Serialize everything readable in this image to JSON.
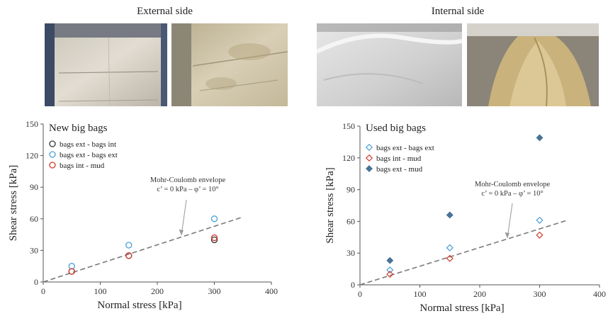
{
  "captions": {
    "left": "External side",
    "right": "Internal side"
  },
  "colors": {
    "black": "#333333",
    "blue": "#4a9fd8",
    "red": "#d23a2a",
    "steel": "#4a7598",
    "envelope": "#7a7a7a"
  },
  "chart_data": [
    {
      "type": "scatter",
      "title": "New big bags",
      "xlabel": "Normal stress [kPa]",
      "ylabel": "Shear stress [kPa]",
      "xlim": [
        0,
        400
      ],
      "ylim": [
        0,
        150
      ],
      "xticks": [
        "0",
        "100",
        "200",
        "300",
        "400"
      ],
      "yticks": [
        "0",
        "30",
        "60",
        "90",
        "120",
        "150"
      ],
      "grid": false,
      "legend_position": "top-left",
      "series": [
        {
          "name": "bags ext - bags int",
          "marker": "circle",
          "color": "#333333",
          "x": [
            50,
            150,
            300
          ],
          "y": [
            10,
            25,
            40
          ]
        },
        {
          "name": "bags ext - bags ext",
          "marker": "circle",
          "color": "#4a9fd8",
          "x": [
            50,
            150,
            300
          ],
          "y": [
            15,
            35,
            60
          ]
        },
        {
          "name": "bags int - mud",
          "marker": "circle",
          "color": "#d23a2a",
          "x": [
            50,
            150,
            300
          ],
          "y": [
            10,
            25,
            42
          ]
        }
      ],
      "envelope": {
        "label1": "Mohr-Coulomb envelope",
        "label2": "c’ = 0 kPa – φ’ = 10°",
        "x": [
          0,
          350
        ],
        "y": [
          0,
          61.7
        ]
      }
    },
    {
      "type": "scatter",
      "title": "Used big bags",
      "xlabel": "Normal stress [kPa]",
      "ylabel": "Shear stress [kPa]",
      "xlim": [
        0,
        400
      ],
      "ylim": [
        0,
        150
      ],
      "xticks": [
        "0",
        "100",
        "200",
        "300",
        "400"
      ],
      "yticks": [
        "0",
        "30",
        "60",
        "90",
        "120",
        "150"
      ],
      "grid": false,
      "legend_position": "top-left",
      "series": [
        {
          "name": "bags ext - bags ext",
          "marker": "diamond-open",
          "color": "#4a9fd8",
          "x": [
            50,
            150,
            300
          ],
          "y": [
            14,
            35,
            61
          ]
        },
        {
          "name": "bags int - mud",
          "marker": "diamond-open",
          "color": "#d23a2a",
          "x": [
            50,
            150,
            300
          ],
          "y": [
            10,
            25,
            47
          ]
        },
        {
          "name": "bags ext - mud",
          "marker": "diamond-filled",
          "color": "#4a7598",
          "x": [
            50,
            150,
            300
          ],
          "y": [
            23,
            66,
            139
          ]
        }
      ],
      "envelope": {
        "label1": "Mohr-Coulomb envelope",
        "label2": "c’ = 0 kPa – φ’ = 10°",
        "x": [
          0,
          345
        ],
        "y": [
          0,
          60.8
        ]
      }
    }
  ]
}
